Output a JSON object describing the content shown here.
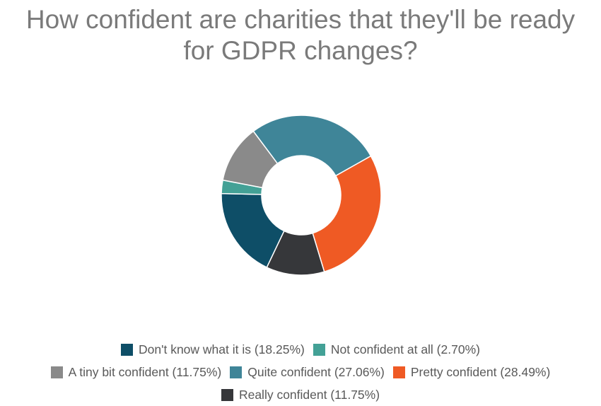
{
  "chart_data": {
    "type": "pie",
    "title_lines": [
      "How confident are charities that they'll be ready",
      "for GDPR changes?"
    ],
    "slices": [
      {
        "label": "Don't know what it is (18.25%)",
        "value": 18.25,
        "color": "#0e4e67"
      },
      {
        "label": "Not confident at all (2.70%)",
        "value": 2.7,
        "color": "#43a196"
      },
      {
        "label": "A tiny bit confident (11.75%)",
        "value": 11.75,
        "color": "#8a8a8a"
      },
      {
        "label": "Quite confident (27.06%)",
        "value": 27.06,
        "color": "#3f8598"
      },
      {
        "label": "Pretty confident (28.49%)",
        "value": 28.49,
        "color": "#ef5a24"
      },
      {
        "label": "Really confident (11.75%)",
        "value": 11.75,
        "color": "#36373a"
      }
    ],
    "legend_position": "bottom"
  }
}
